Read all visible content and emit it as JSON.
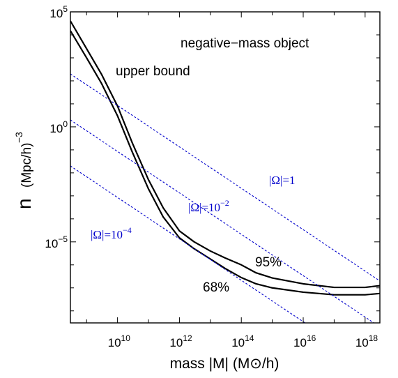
{
  "chart_data": {
    "type": "line",
    "title": "negative−mass object",
    "xlabel": "mass  |M|  (M⊙/h)",
    "ylabel_main": "n",
    "ylabel_units": "(Mpc/h)",
    "ylabel_exp": "−3",
    "x_scale": "log",
    "y_scale": "log",
    "xlim": [
      300000000.0,
      3e+18
    ],
    "ylim": [
      3e-09,
      100000.0
    ],
    "x_ticks": [
      {
        "value": 10000000000.0,
        "base": "10",
        "exp": "10"
      },
      {
        "value": 1000000000000.0,
        "base": "10",
        "exp": "12"
      },
      {
        "value": 100000000000000.0,
        "base": "10",
        "exp": "14"
      },
      {
        "value": 1e+16,
        "base": "10",
        "exp": "16"
      },
      {
        "value": 1e+18,
        "base": "10",
        "exp": "18"
      }
    ],
    "y_ticks": [
      {
        "value": 100000.0,
        "base": "10",
        "exp": "5"
      },
      {
        "value": 1,
        "base": "10",
        "exp": "0"
      },
      {
        "value": 1e-05,
        "base": "10",
        "exp": "−5"
      }
    ],
    "annotations": {
      "upper_bound": "upper bound",
      "p95": "95%",
      "p68": "68%"
    },
    "series": [
      {
        "name": "95%",
        "style": "solid",
        "color": "#000000",
        "x": [
          300000000.0,
          1000000000.0,
          3000000000.0,
          10000000000.0,
          30000000000.0,
          100000000000.0,
          300000000000.0,
          1000000000000.0,
          3000000000000.0,
          10000000000000.0,
          30000000000000.0,
          100000000000000.0,
          300000000000000.0,
          1000000000000000.0,
          1e+16,
          1e+17,
          1e+18,
          3e+18
        ],
        "y": [
          40000.0,
          2500.0,
          200,
          8,
          0.2,
          0.005,
          0.0003,
          3e-05,
          1e-05,
          4e-06,
          2e-06,
          1e-06,
          4.5e-07,
          2.7e-07,
          1.5e-07,
          1.05e-07,
          1.05e-07,
          1.25e-07
        ]
      },
      {
        "name": "68%",
        "style": "solid",
        "color": "#000000",
        "x": [
          300000000.0,
          1000000000.0,
          3000000000.0,
          10000000000.0,
          30000000000.0,
          100000000000.0,
          300000000000.0,
          1000000000000.0,
          3000000000000.0,
          10000000000000.0,
          30000000000000.0,
          100000000000000.0,
          300000000000000.0,
          1000000000000000.0,
          1e+16,
          1e+17,
          1e+18,
          3e+18
        ],
        "y": [
          15000.0,
          1000.0,
          80,
          3,
          0.08,
          0.002,
          0.00012,
          1.5e-05,
          5e-06,
          1.8e-06,
          7e-07,
          2.8e-07,
          1.5e-07,
          1e-07,
          6.5e-08,
          5e-08,
          5e-08,
          5.7e-08
        ]
      },
      {
        "name": "|Ω|=1",
        "style": "dashed",
        "color": "#0000cc",
        "label_base": "|Ω|=1",
        "label_exp": "",
        "x": [
          300000000.0,
          3e+18
        ],
        "y": [
          200,
          2e-07
        ]
      },
      {
        "name": "|Ω|=10−2",
        "style": "dashed",
        "color": "#0000cc",
        "label_base": "|Ω|=10",
        "label_exp": "−2",
        "x": [
          300000000.0,
          3e+18
        ],
        "y": [
          2,
          2e-09
        ]
      },
      {
        "name": "|Ω|=10−4",
        "style": "dashed",
        "color": "#0000cc",
        "label_base": "|Ω|=10",
        "label_exp": "−4",
        "x": [
          300000000.0,
          3e+18
        ],
        "y": [
          0.02,
          2e-11
        ]
      }
    ],
    "grid": false,
    "legend": "none"
  }
}
